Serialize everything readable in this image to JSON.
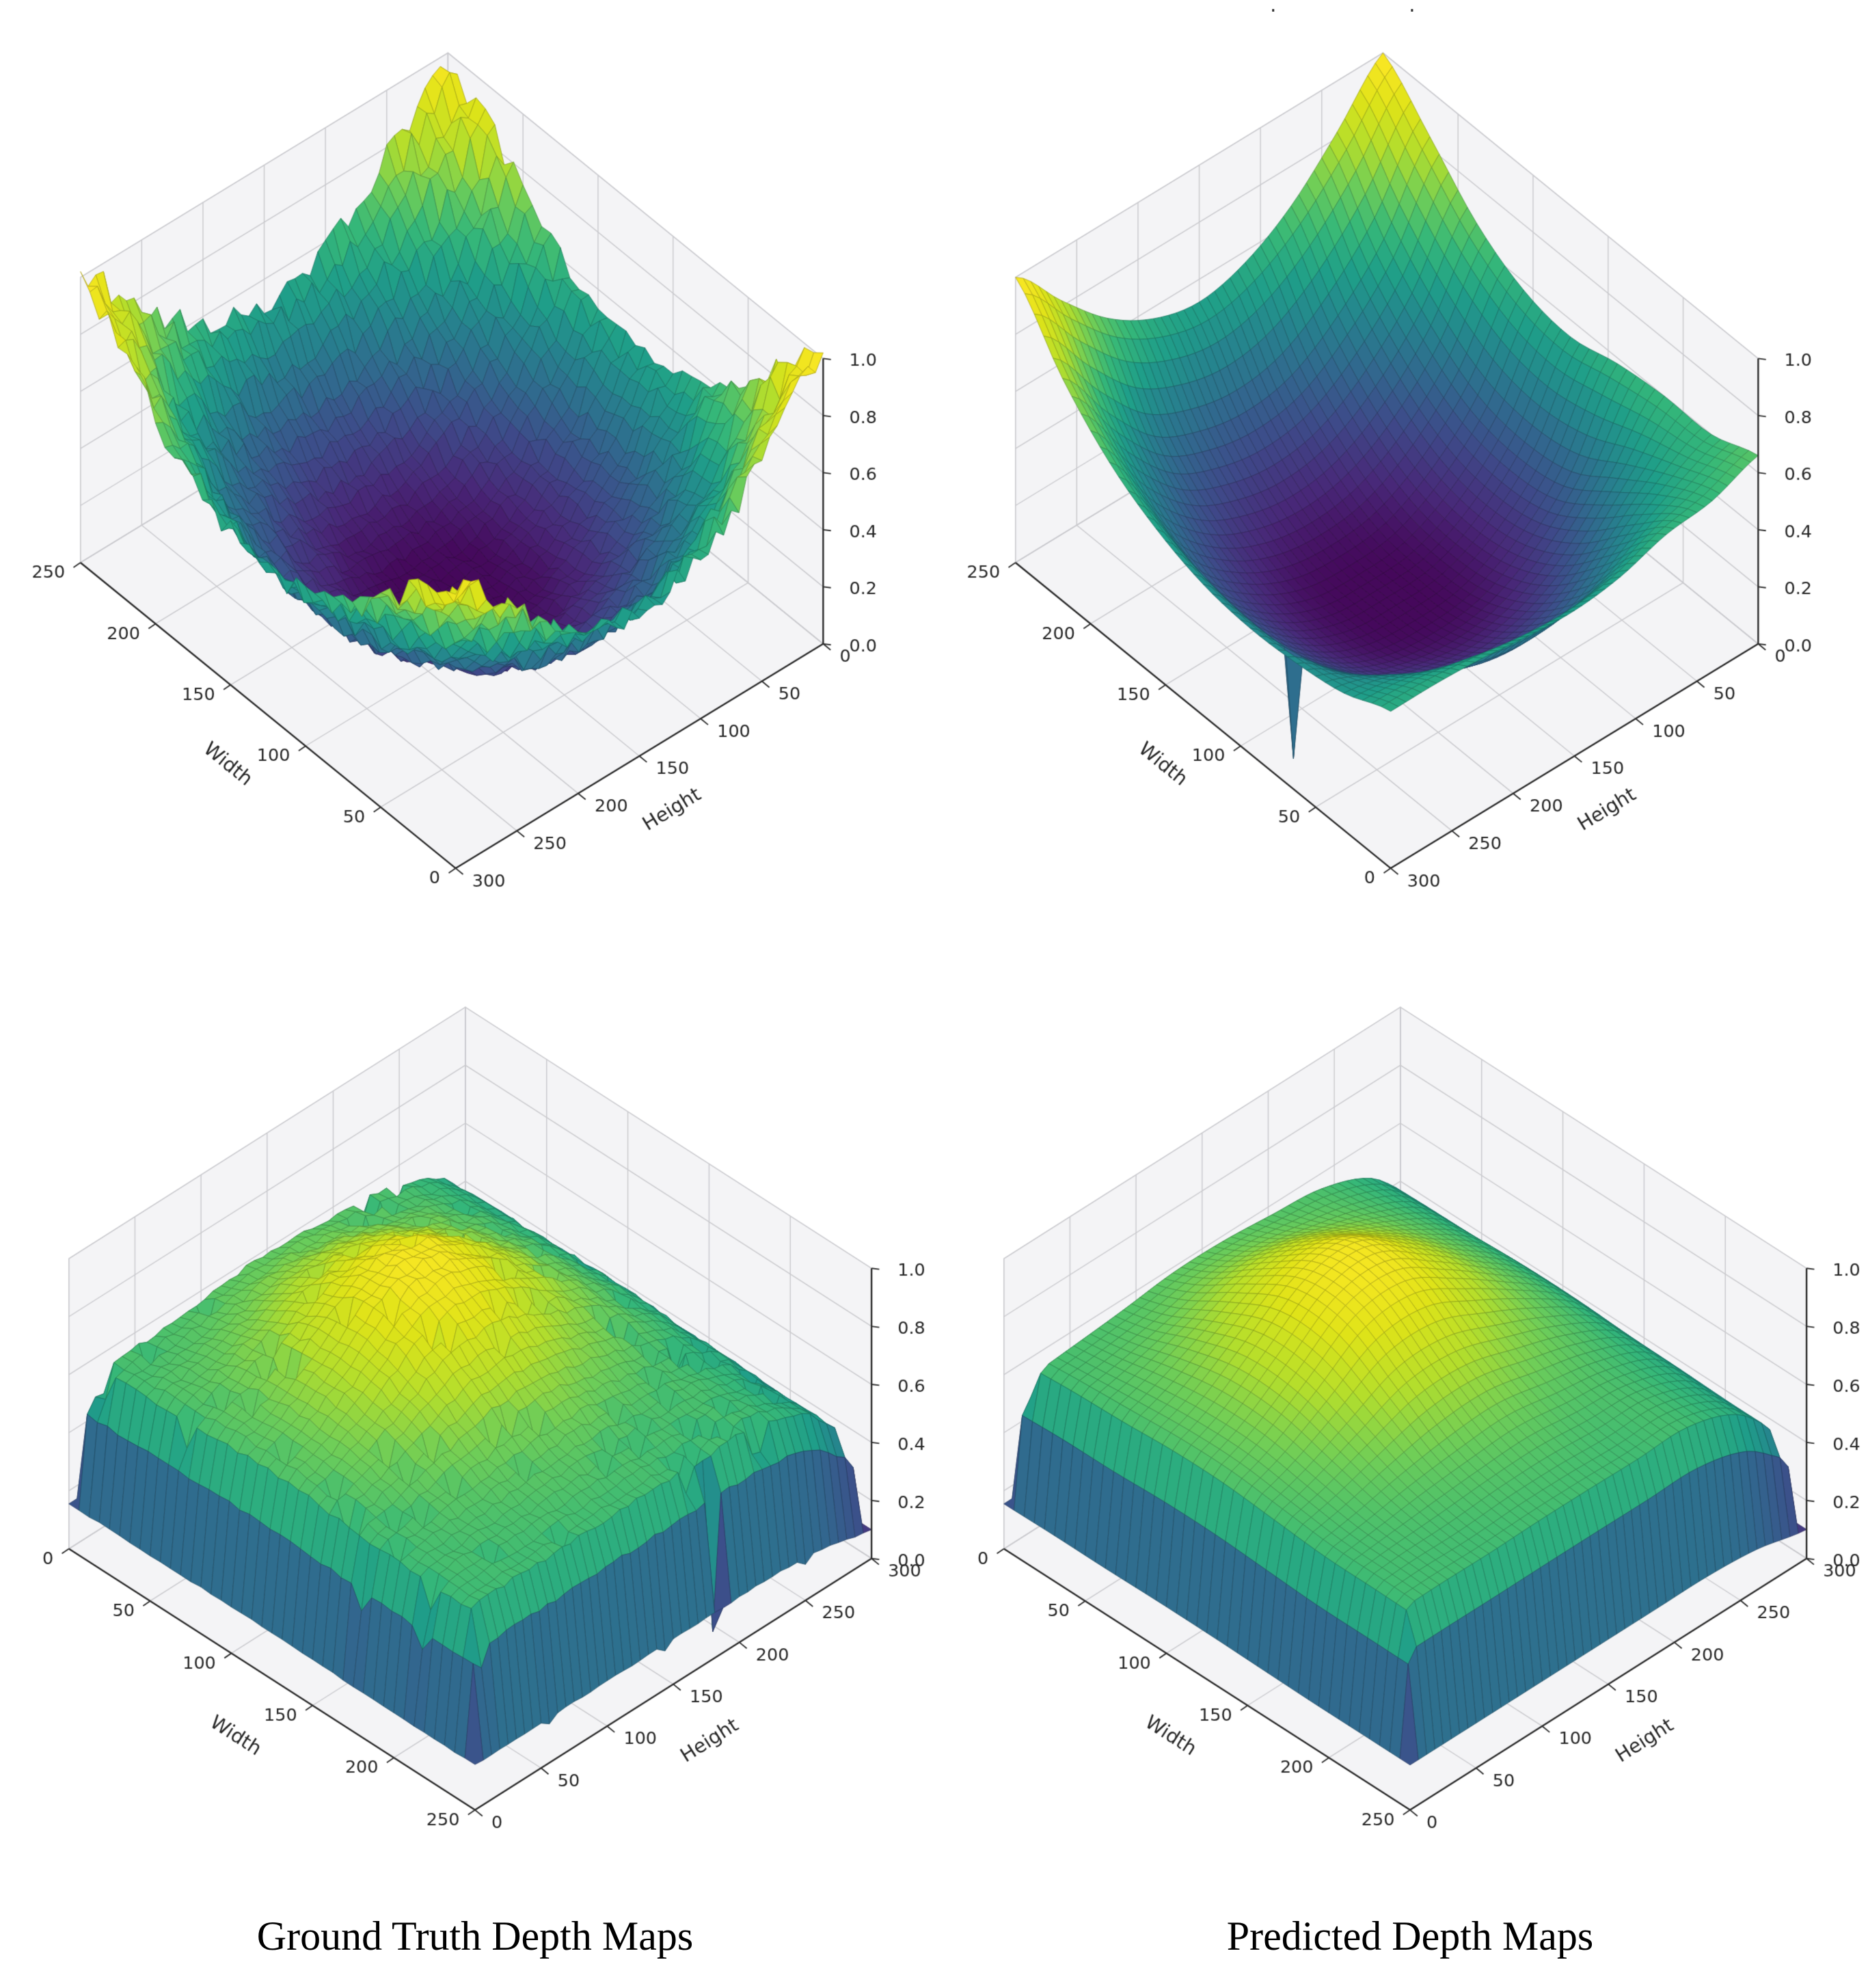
{
  "figure": {
    "captions": [
      {
        "text": "Ground Truth Depth Maps"
      },
      {
        "text": "Predicted Depth Maps"
      }
    ],
    "top_marks": ". ."
  },
  "chart_data": [
    {
      "panel": "top-left",
      "dataset": "ground_truth",
      "sample": 1,
      "type": "surface3d",
      "surface_shape": "bowl",
      "xlabel": "Height",
      "ylabel": "Width",
      "x_range": [
        0,
        300
      ],
      "y_range": [
        0,
        250
      ],
      "z_range": [
        0.0,
        1.0
      ],
      "x_ticks": [
        0,
        50,
        100,
        150,
        200,
        250,
        300
      ],
      "y_ticks": [
        0,
        50,
        100,
        150,
        200,
        250
      ],
      "z_ticks": [
        0.0,
        0.2,
        0.4,
        0.6,
        0.8,
        1.0
      ],
      "colormap": "viridis",
      "view": "v1",
      "noise_amp": 0.08,
      "speckle": 0,
      "edge_drop": null,
      "spikes": [],
      "z_grid": [
        [
          1.0,
          0.84,
          0.66,
          0.55,
          0.51,
          0.55,
          0.66,
          0.84,
          0.95
        ],
        [
          0.84,
          0.58,
          0.41,
          0.3,
          0.27,
          0.3,
          0.41,
          0.58,
          0.84
        ],
        [
          0.66,
          0.41,
          0.24,
          0.14,
          0.11,
          0.14,
          0.24,
          0.41,
          0.66
        ],
        [
          0.55,
          0.3,
          0.14,
          0.05,
          0.03,
          0.05,
          0.14,
          0.3,
          0.55
        ],
        [
          0.51,
          0.27,
          0.11,
          0.03,
          0.02,
          0.03,
          0.11,
          0.27,
          0.51
        ],
        [
          0.55,
          0.3,
          0.14,
          0.05,
          0.03,
          0.05,
          0.14,
          0.3,
          0.55
        ],
        [
          0.66,
          0.41,
          0.24,
          0.14,
          0.11,
          0.14,
          0.24,
          0.41,
          0.66
        ],
        [
          0.84,
          0.58,
          0.41,
          0.3,
          0.27,
          0.3,
          0.41,
          0.58,
          0.84
        ],
        [
          0.97,
          0.84,
          0.66,
          0.55,
          0.51,
          0.55,
          0.66,
          0.84,
          1.0
        ]
      ]
    },
    {
      "panel": "top-right",
      "dataset": "predicted",
      "sample": 1,
      "type": "surface3d",
      "surface_shape": "bowl",
      "xlabel": "Height",
      "ylabel": "Width",
      "x_range": [
        0,
        300
      ],
      "y_range": [
        0,
        250
      ],
      "z_range": [
        0.0,
        1.0
      ],
      "x_ticks": [
        0,
        50,
        100,
        150,
        200,
        250,
        300
      ],
      "y_ticks": [
        0,
        50,
        100,
        150,
        200,
        250
      ],
      "z_ticks": [
        0.0,
        0.2,
        0.4,
        0.6,
        0.8,
        1.0
      ],
      "colormap": "viridis",
      "view": "v1",
      "noise_amp": 0,
      "speckle": 0,
      "edge_drop": null,
      "spikes": [
        {
          "x": 285,
          "y": 75,
          "z": 0.03
        }
      ],
      "z_grid": [
        [
          0.66,
          0.6,
          0.6,
          0.58,
          0.54,
          0.57,
          0.67,
          0.84,
          1.0
        ],
        [
          0.6,
          0.52,
          0.41,
          0.3,
          0.27,
          0.3,
          0.41,
          0.58,
          0.82
        ],
        [
          0.58,
          0.41,
          0.24,
          0.14,
          0.11,
          0.14,
          0.24,
          0.41,
          0.66
        ],
        [
          0.53,
          0.3,
          0.14,
          0.05,
          0.03,
          0.05,
          0.14,
          0.3,
          0.56
        ],
        [
          0.51,
          0.27,
          0.11,
          0.03,
          0.02,
          0.03,
          0.11,
          0.27,
          0.52
        ],
        [
          0.52,
          0.29,
          0.14,
          0.05,
          0.03,
          0.05,
          0.14,
          0.3,
          0.56
        ],
        [
          0.54,
          0.36,
          0.2,
          0.12,
          0.1,
          0.13,
          0.22,
          0.38,
          0.66
        ],
        [
          0.55,
          0.44,
          0.32,
          0.25,
          0.24,
          0.27,
          0.38,
          0.56,
          0.82
        ],
        [
          0.55,
          0.48,
          0.45,
          0.44,
          0.46,
          0.52,
          0.62,
          0.78,
          1.0
        ]
      ]
    },
    {
      "panel": "bottom-left",
      "dataset": "ground_truth",
      "sample": 2,
      "type": "surface3d",
      "surface_shape": "plateau-with-gaussian-bump",
      "xlabel": "Height",
      "ylabel": "Width",
      "x_range": [
        0,
        300
      ],
      "y_range": [
        0,
        250
      ],
      "z_range": [
        0.0,
        1.0
      ],
      "x_ticks": [
        0,
        50,
        100,
        150,
        200,
        250,
        300
      ],
      "y_ticks": [
        0,
        50,
        100,
        150,
        200,
        250
      ],
      "z_ticks": [
        0.0,
        0.2,
        0.4,
        0.6,
        0.8,
        1.0
      ],
      "colormap": "viridis",
      "view": "v2",
      "noise_amp": 0.015,
      "speckle": 0.09,
      "edge_drop": {
        "margin": 0.05,
        "amount": 0.75
      },
      "spikes": [
        {
          "x": 190,
          "y": 245,
          "z": 0.05
        }
      ],
      "z_grid": [
        [
          0.62,
          0.63,
          0.63,
          0.64,
          0.64,
          0.63,
          0.62,
          0.62,
          0.62
        ],
        [
          0.63,
          0.65,
          0.68,
          0.7,
          0.7,
          0.67,
          0.64,
          0.63,
          0.62
        ],
        [
          0.64,
          0.68,
          0.76,
          0.82,
          0.81,
          0.74,
          0.67,
          0.63,
          0.62
        ],
        [
          0.65,
          0.72,
          0.84,
          0.94,
          0.93,
          0.81,
          0.69,
          0.64,
          0.62
        ],
        [
          0.65,
          0.72,
          0.85,
          0.96,
          0.94,
          0.81,
          0.7,
          0.64,
          0.62
        ],
        [
          0.64,
          0.69,
          0.78,
          0.85,
          0.84,
          0.75,
          0.67,
          0.63,
          0.62
        ],
        [
          0.63,
          0.65,
          0.69,
          0.72,
          0.72,
          0.68,
          0.64,
          0.63,
          0.62
        ],
        [
          0.56,
          0.57,
          0.58,
          0.59,
          0.59,
          0.58,
          0.57,
          0.56,
          0.56
        ],
        [
          0.4,
          0.4,
          0.4,
          0.41,
          0.41,
          0.4,
          0.4,
          0.4,
          0.4
        ]
      ]
    },
    {
      "panel": "bottom-right",
      "dataset": "predicted",
      "sample": 2,
      "type": "surface3d",
      "surface_shape": "plateau-with-gaussian-bump",
      "xlabel": "Height",
      "ylabel": "Width",
      "x_range": [
        0,
        300
      ],
      "y_range": [
        0,
        250
      ],
      "z_range": [
        0.0,
        1.0
      ],
      "x_ticks": [
        0,
        50,
        100,
        150,
        200,
        250,
        300
      ],
      "y_ticks": [
        0,
        50,
        100,
        150,
        200,
        250
      ],
      "z_ticks": [
        0.0,
        0.2,
        0.4,
        0.6,
        0.8,
        1.0
      ],
      "colormap": "viridis",
      "view": "v2",
      "noise_amp": 0,
      "speckle": 0,
      "edge_drop": {
        "margin": 0.05,
        "amount": 0.75
      },
      "spikes": [],
      "z_grid": [
        [
          0.62,
          0.63,
          0.63,
          0.64,
          0.64,
          0.63,
          0.62,
          0.62,
          0.62
        ],
        [
          0.63,
          0.65,
          0.68,
          0.7,
          0.7,
          0.67,
          0.64,
          0.63,
          0.62
        ],
        [
          0.64,
          0.68,
          0.76,
          0.82,
          0.81,
          0.74,
          0.67,
          0.63,
          0.62
        ],
        [
          0.65,
          0.72,
          0.84,
          0.94,
          0.93,
          0.81,
          0.69,
          0.64,
          0.62
        ],
        [
          0.65,
          0.72,
          0.85,
          0.96,
          0.94,
          0.81,
          0.7,
          0.64,
          0.62
        ],
        [
          0.64,
          0.69,
          0.78,
          0.85,
          0.84,
          0.75,
          0.67,
          0.63,
          0.62
        ],
        [
          0.63,
          0.65,
          0.69,
          0.72,
          0.72,
          0.68,
          0.64,
          0.63,
          0.62
        ],
        [
          0.56,
          0.57,
          0.58,
          0.59,
          0.59,
          0.58,
          0.57,
          0.56,
          0.56
        ],
        [
          0.4,
          0.4,
          0.4,
          0.41,
          0.41,
          0.4,
          0.4,
          0.4,
          0.4
        ]
      ]
    }
  ]
}
